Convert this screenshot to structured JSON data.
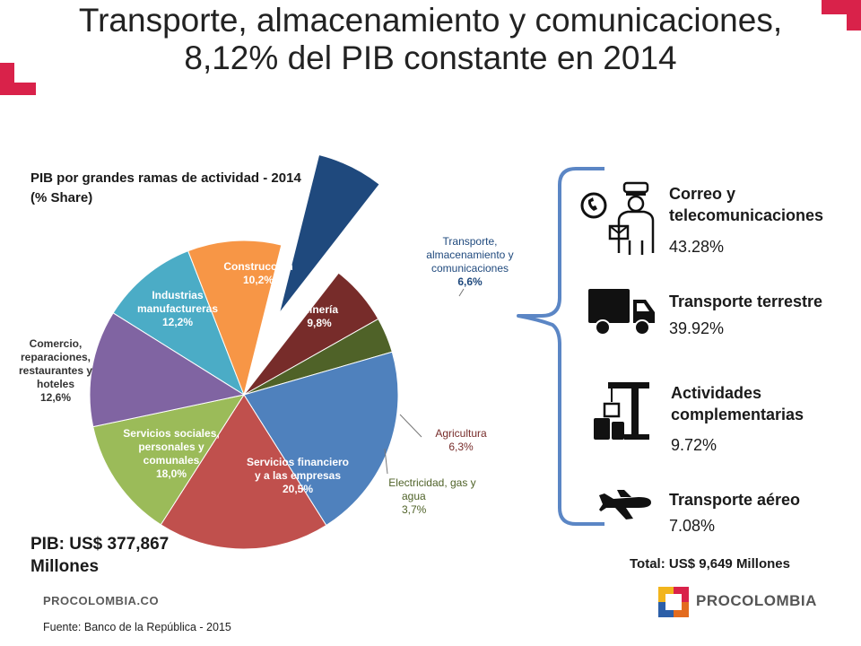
{
  "title_line1": "Transporte, almacenamiento y comunicaciones,",
  "title_line2": "8,12% del PIB constante en 2014",
  "chart_subtitle_line1": "PIB por grandes ramas de actividad - 2014",
  "chart_subtitle_line2": "(% Share)",
  "pib_total_line1": "PIB: US$ 377,867",
  "pib_total_line2": "Millones",
  "source": "Fuente: Banco de la República  - 2015",
  "footer_brand": "PROCOLOMBIA.CO",
  "logo_text": "PROCOLOMBIA",
  "total_label": "Total:",
  "total_value": "US$ 9,649 Millones",
  "colors": {
    "accent_red": "#d9224a",
    "brace_blue": "#5b86c5"
  },
  "chart_data": {
    "type": "pie",
    "title": "PIB por grandes ramas de actividad - 2014",
    "subtitle": "(% Share)",
    "slices": [
      {
        "label": "Construcción",
        "value": 10.2,
        "display": "10,2%",
        "color": "#4bacc6"
      },
      {
        "label": "Minería",
        "value": 9.8,
        "display": "9,8%",
        "color": "#f79646"
      },
      {
        "label": "Transporte, almacenamiento y comunicaciones",
        "value": 6.6,
        "display": "6,6%",
        "color": "#1f497d",
        "exploded": true
      },
      {
        "label": "Agricultura",
        "value": 6.3,
        "display": "6,3%",
        "color": "#772c2a"
      },
      {
        "label": "Electricidad, gas y agua",
        "value": 3.7,
        "display": "3,7%",
        "color": "#4f6228"
      },
      {
        "label": "Servicios financiero y a las empresas",
        "value": 20.5,
        "display": "20,5%",
        "color": "#4f81bd"
      },
      {
        "label": "Servicios sociales, personales y comunales",
        "value": 18.0,
        "display": "18,0%",
        "color": "#c0504d"
      },
      {
        "label": "Comercio, reparaciones, restaurantes y hoteles",
        "value": 12.6,
        "display": "12,6%",
        "color": "#9bbb59"
      },
      {
        "label": "Industrias manufactureras",
        "value": 12.2,
        "display": "12,2%",
        "color": "#8064a2"
      }
    ]
  },
  "labels": {
    "construccion": [
      "Construcción",
      "10,2%"
    ],
    "mineria": [
      "Minería",
      "9,8%"
    ],
    "transporte": [
      "Transporte,",
      "almacenamiento y",
      "comunicaciones",
      "6,6%"
    ],
    "agricultura": [
      "Agricultura",
      "6,3%"
    ],
    "electricidad": [
      "Electricidad, gas y",
      "agua",
      "3,7%"
    ],
    "financieros": [
      "Servicios financiero",
      "y a las empresas",
      "20,5%"
    ],
    "sociales": [
      "Servicios sociales,",
      "personales y",
      "comunales",
      "18,0%"
    ],
    "comercio": [
      "Comercio,",
      "reparaciones,",
      "restaurantes y",
      "hoteles",
      "12,6%"
    ],
    "industrias": [
      "Industrias",
      "manufactureras",
      "12,2%"
    ]
  },
  "breakdown": [
    {
      "title_lines": [
        "Correo y",
        "telecomunicaciones"
      ],
      "pct": "43.28%",
      "icon": "postman-phone-icon"
    },
    {
      "title_lines": [
        "Transporte terrestre"
      ],
      "pct": "39.92%",
      "icon": "truck-icon"
    },
    {
      "title_lines": [
        "Actividades",
        "complementarias"
      ],
      "pct": "9.72%",
      "icon": "crane-boxes-icon"
    },
    {
      "title_lines": [
        "Transporte aéreo"
      ],
      "pct": "7.08%",
      "icon": "airplane-icon"
    }
  ]
}
